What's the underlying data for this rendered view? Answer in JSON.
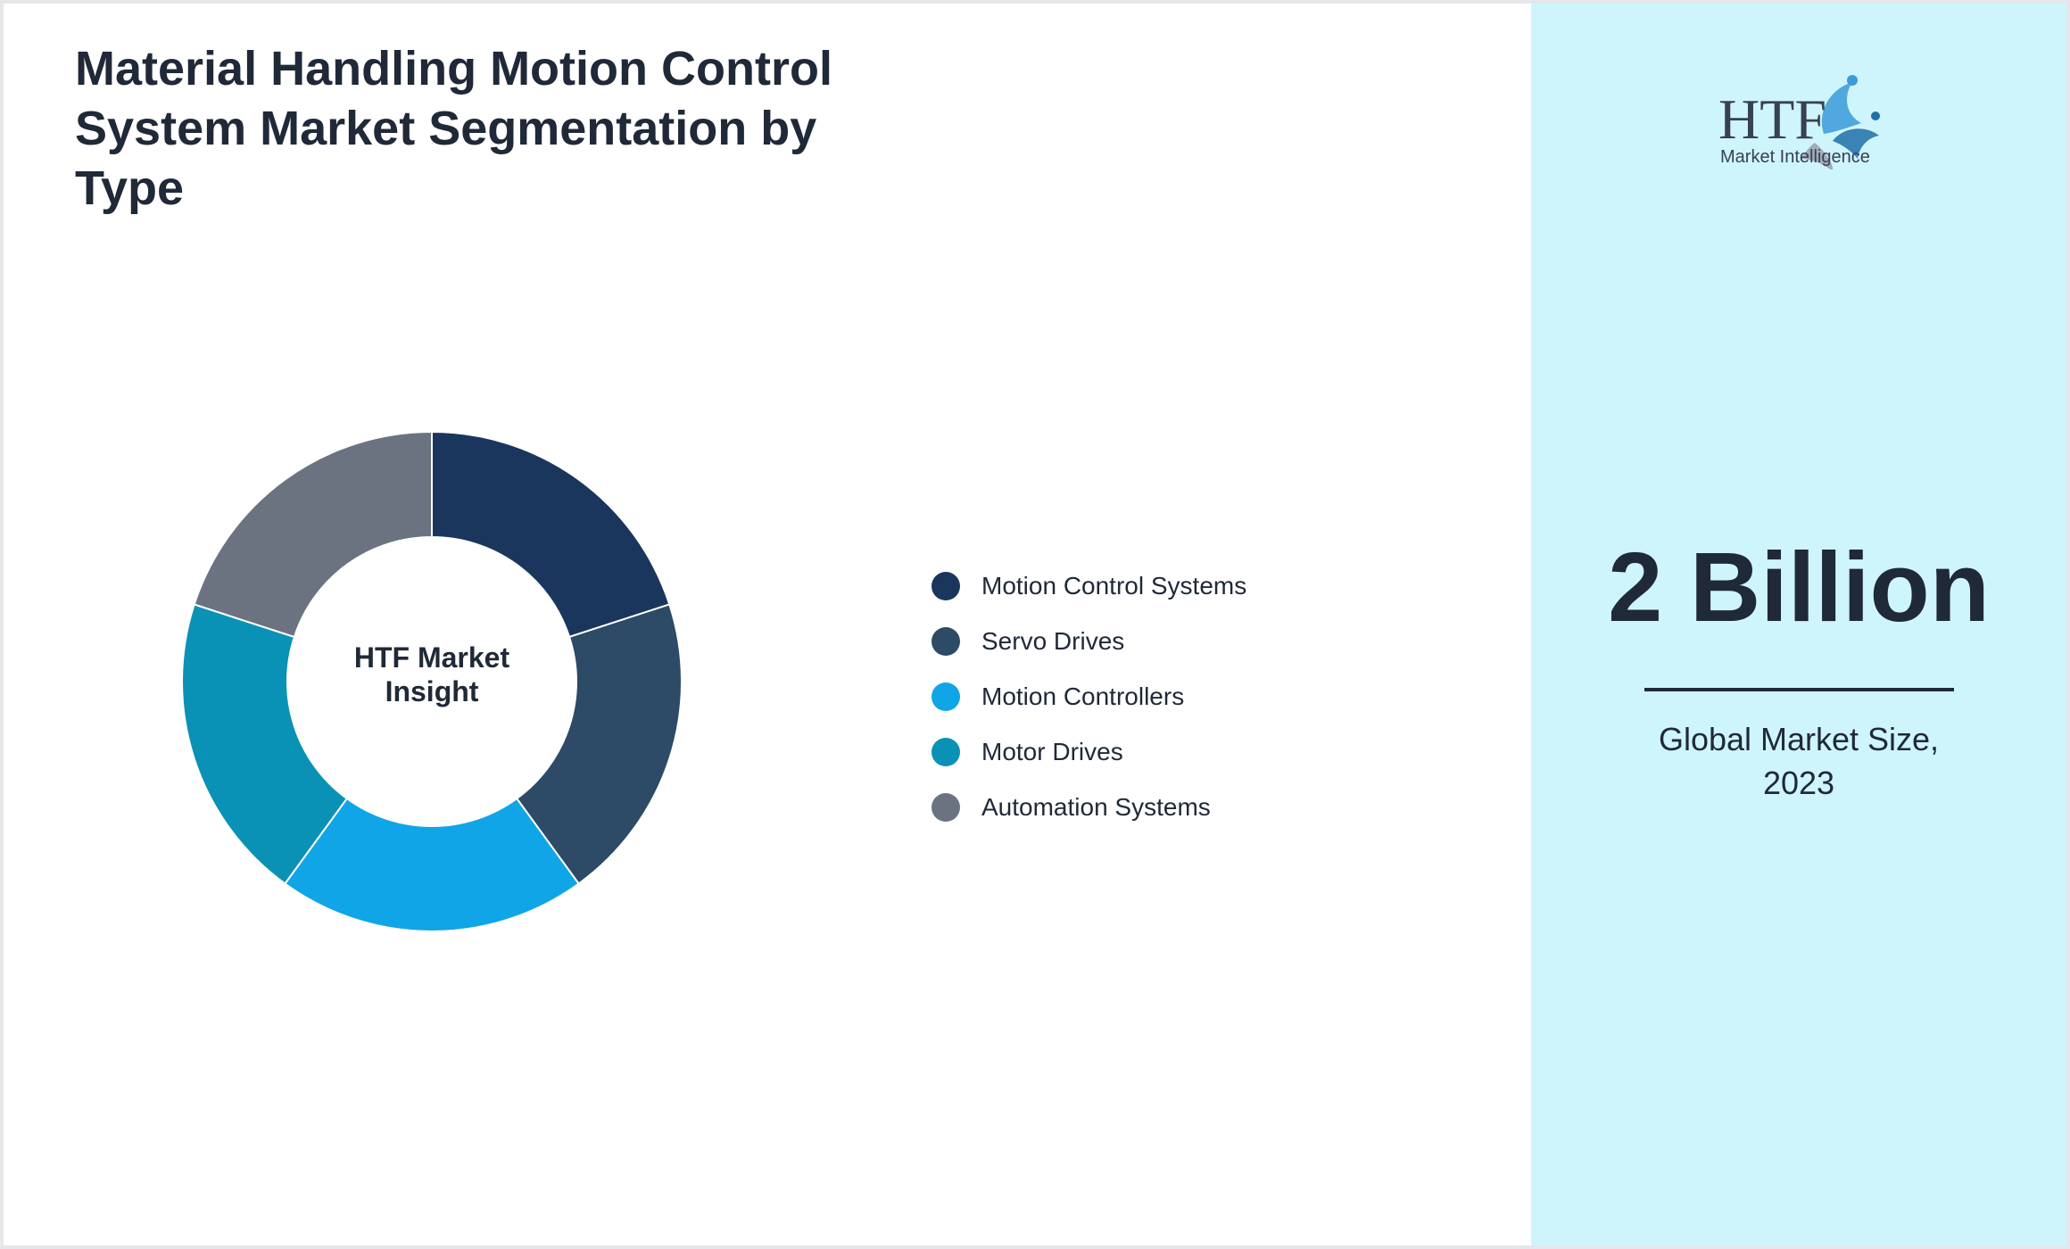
{
  "title": "Material Handling Motion Control System Market Segmentation by Type",
  "chart_data": {
    "type": "pie",
    "style": "donut",
    "center_label_line1": "HTF Market",
    "center_label_line2": "Insight",
    "legend_position": "right",
    "categories": [
      "Motion Control Systems",
      "Servo Drives",
      "Motion Controllers",
      "Motor Drives",
      "Automation Systems"
    ],
    "values": [
      20,
      20,
      20,
      20,
      20
    ],
    "colors": [
      "#1b365d",
      "#2d4a66",
      "#10a5e6",
      "#0a92b6",
      "#6b7280"
    ]
  },
  "sidebar": {
    "logo": {
      "mark_text": "HTF",
      "subtitle": "Market Intelligence"
    },
    "market_value": "2 Billion",
    "caption_line1": "Global Market Size,",
    "caption_line2": "2023"
  },
  "colors": {
    "panel_background": "#cff5fc",
    "text": "#1f2937"
  }
}
